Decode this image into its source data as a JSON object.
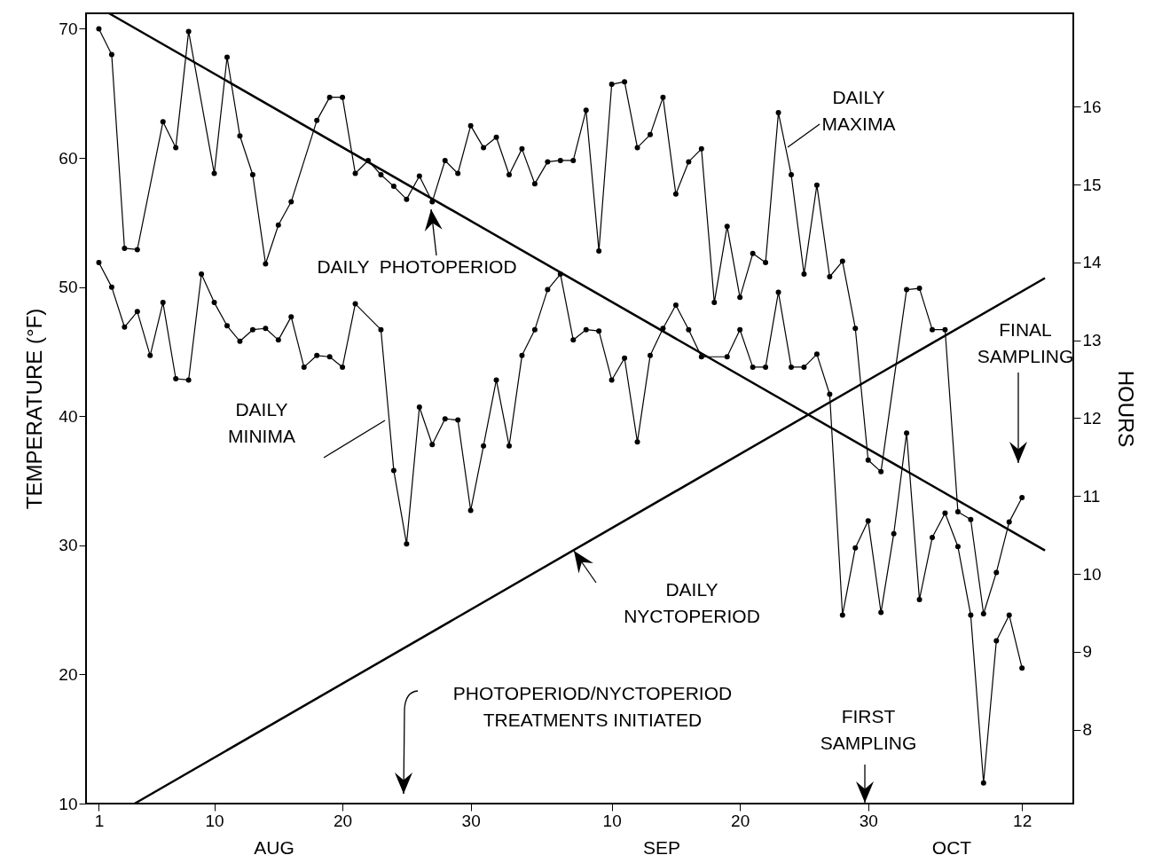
{
  "chart_data": {
    "type": "line",
    "ylabel": "TEMPERATURE (°F)",
    "y2label": "HOURS",
    "xlim": [
      "--07-31",
      "--10-16"
    ],
    "xticks": [
      {
        "value": "--08-01",
        "label": "1"
      },
      {
        "value": "--08-10",
        "label": "10"
      },
      {
        "value": "--08-20",
        "label": "20"
      },
      {
        "value": "--08-30",
        "label": "30"
      },
      {
        "value": "--09-10",
        "label": "10"
      },
      {
        "value": "--09-20",
        "label": "20"
      },
      {
        "value": "--09-30",
        "label": "30"
      },
      {
        "value": "--10-12",
        "label": "12"
      }
    ],
    "ylim": [
      10,
      71.2
    ],
    "yticks": [
      10,
      20,
      30,
      40,
      50,
      60,
      70
    ],
    "y2lim": [
      7.05,
      17.2
    ],
    "y2ticks": [
      8,
      9,
      10,
      11,
      12,
      13,
      14,
      15,
      16
    ],
    "grid": false,
    "marker": "circle",
    "series": [
      {
        "name": "DAILY MAXIMA",
        "color": "#000000",
        "x": [
          "--08-01",
          "--08-02",
          "--08-03",
          "--08-04",
          "--08-06",
          "--08-07",
          "--08-08",
          "--08-10",
          "--08-11",
          "--08-12",
          "--08-13",
          "--08-14",
          "--08-15",
          "--08-16",
          "--08-18",
          "--08-19",
          "--08-20",
          "--08-21",
          "--08-22",
          "--08-23",
          "--08-24",
          "--08-25",
          "--08-26",
          "--08-27",
          "--08-28",
          "--08-29",
          "--08-30",
          "--08-31",
          "--09-01",
          "--09-02",
          "--09-03",
          "--09-04",
          "--09-05",
          "--09-06",
          "--09-07",
          "--09-08",
          "--09-09",
          "--09-10",
          "--09-11",
          "--09-12",
          "--09-13",
          "--09-14",
          "--09-15",
          "--09-16",
          "--09-17",
          "--09-18",
          "--09-19",
          "--09-20",
          "--09-21",
          "--09-22",
          "--09-23",
          "--09-24",
          "--09-25",
          "--09-26",
          "--09-27",
          "--09-28",
          "--09-29",
          "--09-30",
          "--10-01",
          "--10-03",
          "--10-04",
          "--10-05",
          "--10-06",
          "--10-07",
          "--10-08",
          "--10-09",
          "--10-10",
          "--10-11",
          "--10-12"
        ],
        "values": [
          70.0,
          68.0,
          53.0,
          52.9,
          62.8,
          60.8,
          69.8,
          58.8,
          67.8,
          61.7,
          58.7,
          51.8,
          54.8,
          56.6,
          62.9,
          64.7,
          64.7,
          58.8,
          59.8,
          58.7,
          57.8,
          56.8,
          58.6,
          56.6,
          59.8,
          58.8,
          62.5,
          60.8,
          61.6,
          58.7,
          60.7,
          58.0,
          59.7,
          59.8,
          59.8,
          63.7,
          52.8,
          65.7,
          65.9,
          60.8,
          61.8,
          64.7,
          57.2,
          59.7,
          60.7,
          48.8,
          54.7,
          49.2,
          52.6,
          51.9,
          63.5,
          58.7,
          51.0,
          57.9,
          50.8,
          52.0,
          46.8,
          36.6,
          35.7,
          49.8,
          49.9,
          46.7,
          46.7,
          32.6,
          32.0,
          24.7,
          27.9,
          31.8,
          33.7
        ]
      },
      {
        "name": "DAILY MINIMA",
        "color": "#000000",
        "x": [
          "--08-01",
          "--08-02",
          "--08-03",
          "--08-04",
          "--08-05",
          "--08-06",
          "--08-07",
          "--08-08",
          "--08-09",
          "--08-10",
          "--08-11",
          "--08-12",
          "--08-13",
          "--08-14",
          "--08-15",
          "--08-16",
          "--08-17",
          "--08-18",
          "--08-19",
          "--08-20",
          "--08-21",
          "--08-23",
          "--08-24",
          "--08-25",
          "--08-26",
          "--08-27",
          "--08-28",
          "--08-29",
          "--08-30",
          "--08-31",
          "--09-01",
          "--09-02",
          "--09-03",
          "--09-04",
          "--09-05",
          "--09-06",
          "--09-07",
          "--09-08",
          "--09-09",
          "--09-10",
          "--09-11",
          "--09-12",
          "--09-13",
          "--09-14",
          "--09-15",
          "--09-16",
          "--09-17",
          "--09-19",
          "--09-20",
          "--09-21",
          "--09-22",
          "--09-23",
          "--09-24",
          "--09-25",
          "--09-26",
          "--09-27",
          "--09-28",
          "--09-29",
          "--09-30",
          "--10-01",
          "--10-02",
          "--10-03",
          "--10-04",
          "--10-05",
          "--10-06",
          "--10-07",
          "--10-08",
          "--10-09",
          "--10-10",
          "--10-11",
          "--10-12"
        ],
        "values": [
          51.9,
          50.0,
          46.9,
          48.1,
          44.7,
          48.8,
          42.9,
          42.8,
          51.0,
          48.8,
          47.0,
          45.8,
          46.7,
          46.8,
          45.9,
          47.7,
          43.8,
          44.7,
          44.6,
          43.8,
          48.7,
          46.7,
          35.8,
          30.1,
          40.7,
          37.8,
          39.8,
          39.7,
          32.7,
          37.7,
          42.8,
          37.7,
          44.7,
          46.7,
          49.8,
          51.0,
          45.9,
          46.7,
          46.6,
          42.8,
          44.5,
          38.0,
          44.7,
          46.8,
          48.6,
          46.7,
          44.6,
          44.6,
          46.7,
          43.8,
          43.8,
          49.6,
          43.8,
          43.8,
          44.8,
          41.7,
          24.6,
          29.8,
          31.9,
          24.8,
          30.9,
          38.7,
          25.8,
          30.6,
          32.5,
          29.9,
          24.6,
          11.6,
          22.6,
          24.6,
          20.5
        ]
      },
      {
        "name": "DAILY  PHOTOPERIOD",
        "color": "#000000",
        "axis": "y2",
        "marker": "none",
        "x": [
          "--08-01T19:00",
          "--10-13T19:00"
        ],
        "values": [
          17.2,
          10.3
        ]
      },
      {
        "name": "DAILY NYCTOPERIOD",
        "color": "#000000",
        "axis": "y2",
        "marker": "none",
        "x": [
          "--08-03T19:00",
          "--10-13T19:00"
        ],
        "values": [
          7.05,
          13.8
        ]
      }
    ],
    "annotations": [
      "PHOTOPERIOD/NYCTOPERIOD TREATMENTS INITIATED",
      "FIRST SAMPLING",
      "FINAL SAMPLING",
      "AUG",
      "SEP",
      "OCT"
    ]
  }
}
